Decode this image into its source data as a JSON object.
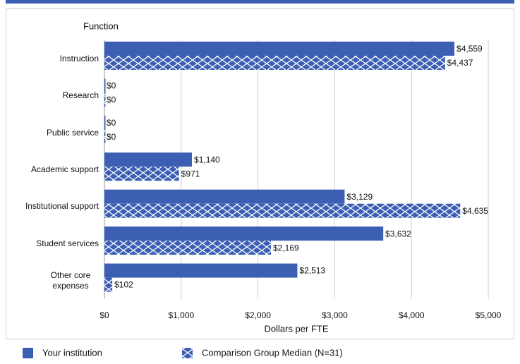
{
  "chart_data": {
    "type": "bar",
    "orientation": "horizontal",
    "y_label": "Function",
    "x_label": "Dollars per FTE",
    "categories": [
      "Instruction",
      "Research",
      "Public service",
      "Academic support",
      "Institutional support",
      "Student services",
      "Other core expenses"
    ],
    "series": [
      {
        "name": "Your institution",
        "color": "#3c5fb4",
        "pattern": "solid",
        "values": [
          4559,
          0,
          0,
          1140,
          3129,
          3632,
          2513
        ],
        "value_labels": [
          "$4,559",
          "$0",
          "$0",
          "$1,140",
          "$3,129",
          "$3,632",
          "$2,513"
        ]
      },
      {
        "name": "Comparison Group Median (N=31)",
        "color": "#3c5fb4",
        "pattern": "crosshatch",
        "values": [
          4437,
          0,
          0,
          971,
          4635,
          2169,
          102
        ],
        "value_labels": [
          "$4,437",
          "$0",
          "$0",
          "$971",
          "$4,635",
          "$2,169",
          "$102"
        ]
      }
    ],
    "xlim": [
      0,
      5000
    ],
    "xticks": [
      {
        "value": 0,
        "label": "$0"
      },
      {
        "value": 1000,
        "label": "$1,000"
      },
      {
        "value": 2000,
        "label": "$2,000"
      },
      {
        "value": 3000,
        "label": "$3,000"
      },
      {
        "value": 4000,
        "label": "$4,000"
      },
      {
        "value": 5000,
        "label": "$5,000"
      }
    ],
    "grid": true
  }
}
